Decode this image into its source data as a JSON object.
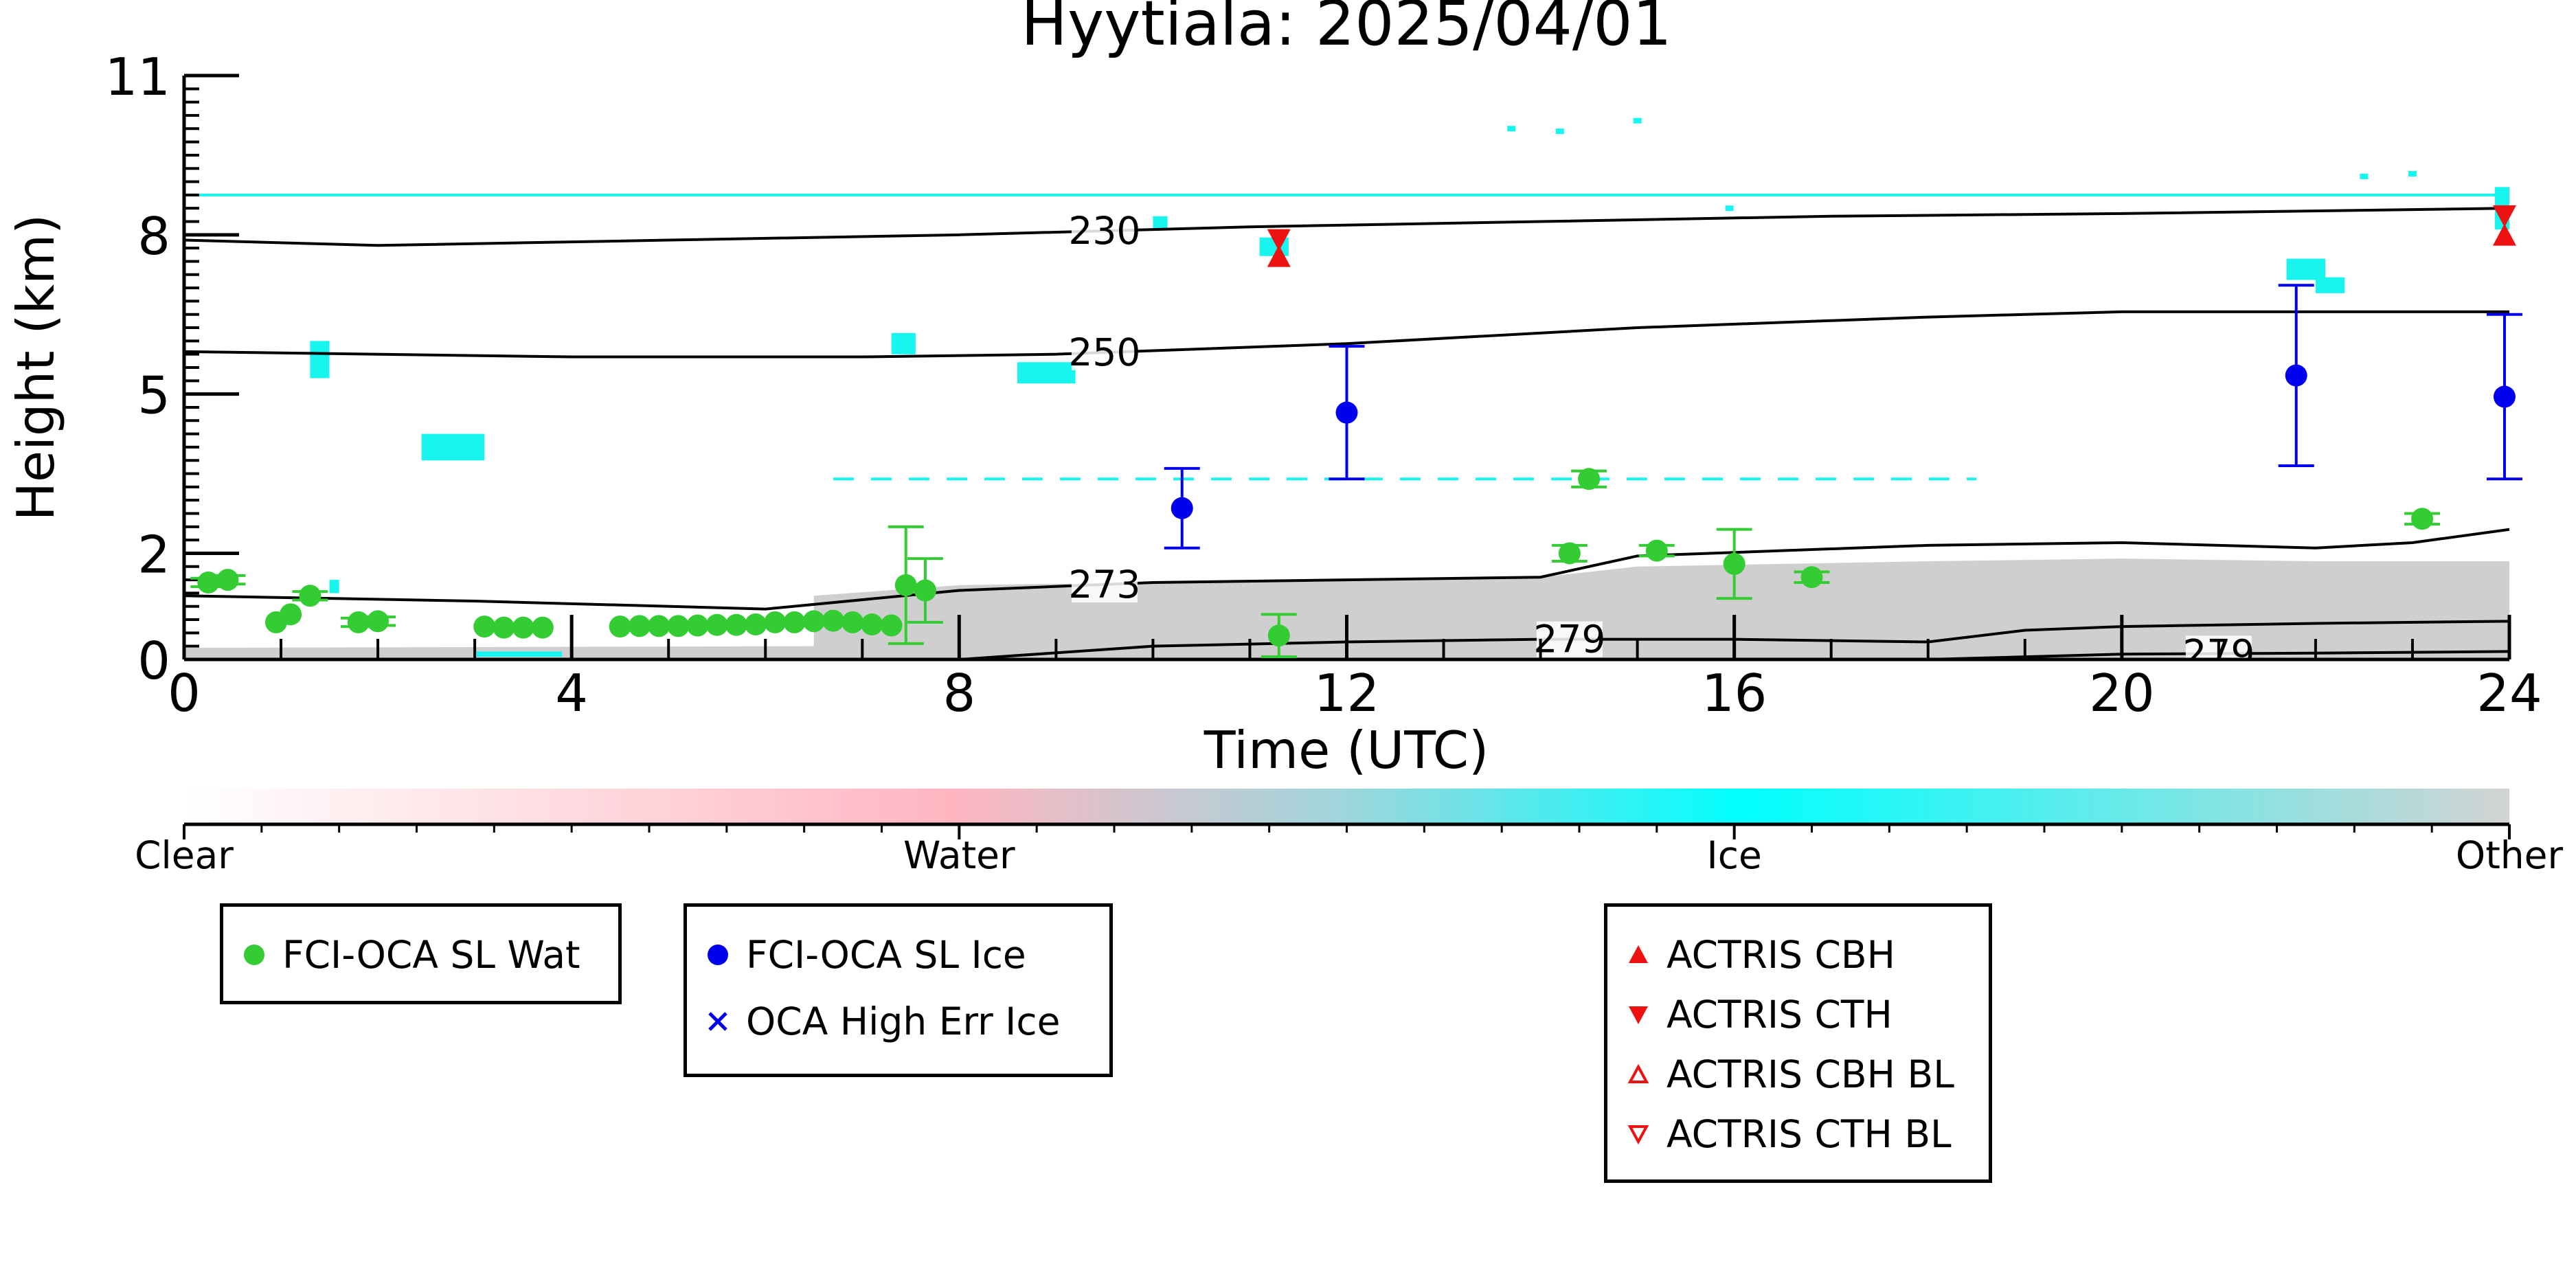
{
  "chart_data": {
    "type": "scatter",
    "title": "Hyytiala: 2025/04/01",
    "xlabel": "Time (UTC)",
    "ylabel": "Height (km)",
    "xlim": [
      0,
      24
    ],
    "ylim": [
      0,
      11
    ],
    "x_ticks": [
      "0",
      "4",
      "8",
      "12",
      "16",
      "20",
      "24"
    ],
    "y_ticks": [
      "0",
      "2",
      "5",
      "8",
      "11"
    ],
    "grid": false,
    "temperature_contours": [
      {
        "label": "230",
        "label_x": 9.5,
        "points": [
          [
            0,
            7.9
          ],
          [
            2,
            7.8
          ],
          [
            5,
            7.9
          ],
          [
            8,
            8.0
          ],
          [
            11,
            8.15
          ],
          [
            14,
            8.25
          ],
          [
            17,
            8.35
          ],
          [
            20,
            8.4
          ],
          [
            24,
            8.5
          ]
        ]
      },
      {
        "label": "250",
        "label_x": 9.5,
        "points": [
          [
            0,
            5.8
          ],
          [
            4,
            5.7
          ],
          [
            7,
            5.7
          ],
          [
            9,
            5.75
          ],
          [
            12,
            5.95
          ],
          [
            15,
            6.25
          ],
          [
            18,
            6.45
          ],
          [
            20,
            6.55
          ],
          [
            24,
            6.55
          ]
        ]
      },
      {
        "label": "273",
        "label_x": 9.5,
        "points": [
          [
            0,
            1.2
          ],
          [
            3,
            1.1
          ],
          [
            6,
            0.95
          ],
          [
            8,
            1.3
          ],
          [
            10,
            1.45
          ],
          [
            12,
            1.5
          ],
          [
            14,
            1.55
          ],
          [
            15,
            1.95
          ],
          [
            18,
            2.15
          ],
          [
            20,
            2.2
          ],
          [
            22,
            2.1
          ],
          [
            23,
            2.2
          ],
          [
            24,
            2.45
          ]
        ]
      },
      {
        "label": "279",
        "label_x": 14.3,
        "points": [
          [
            8,
            0
          ],
          [
            10,
            0.25
          ],
          [
            12,
            0.33
          ],
          [
            14,
            0.38
          ],
          [
            16,
            0.38
          ],
          [
            18,
            0.33
          ],
          [
            19,
            0.55
          ],
          [
            20,
            0.62
          ],
          [
            22,
            0.68
          ],
          [
            24,
            0.72
          ]
        ]
      },
      {
        "label": "279",
        "label_x": 21.0,
        "points": [
          [
            18,
            0
          ],
          [
            20,
            0.1
          ],
          [
            22,
            0.12
          ],
          [
            24,
            0.15
          ]
        ]
      }
    ],
    "series": [
      {
        "name": "FCI-OCA SL Wat",
        "color": "#33cc33",
        "marker": "circle",
        "points": [
          {
            "x": 0.25,
            "y": 1.45,
            "err": 0.08
          },
          {
            "x": 0.45,
            "y": 1.5,
            "err": 0.08
          },
          {
            "x": 0.95,
            "y": 0.7
          },
          {
            "x": 1.1,
            "y": 0.85
          },
          {
            "x": 1.3,
            "y": 1.2,
            "err": 0.08
          },
          {
            "x": 1.8,
            "y": 0.7,
            "err": 0.08
          },
          {
            "x": 2.0,
            "y": 0.72,
            "err": 0.08
          },
          {
            "x": 3.1,
            "y": 0.62
          },
          {
            "x": 3.3,
            "y": 0.6
          },
          {
            "x": 3.5,
            "y": 0.6
          },
          {
            "x": 3.7,
            "y": 0.6
          },
          {
            "x": 4.5,
            "y": 0.62
          },
          {
            "x": 4.7,
            "y": 0.63
          },
          {
            "x": 4.9,
            "y": 0.63
          },
          {
            "x": 5.1,
            "y": 0.63
          },
          {
            "x": 5.3,
            "y": 0.64
          },
          {
            "x": 5.5,
            "y": 0.65
          },
          {
            "x": 5.7,
            "y": 0.65
          },
          {
            "x": 5.9,
            "y": 0.66
          },
          {
            "x": 6.1,
            "y": 0.7
          },
          {
            "x": 6.3,
            "y": 0.7
          },
          {
            "x": 6.5,
            "y": 0.72
          },
          {
            "x": 6.7,
            "y": 0.73
          },
          {
            "x": 6.9,
            "y": 0.7
          },
          {
            "x": 7.1,
            "y": 0.66
          },
          {
            "x": 7.3,
            "y": 0.64
          },
          {
            "x": 7.45,
            "y": 1.4,
            "err": 1.1
          },
          {
            "x": 7.65,
            "y": 1.3,
            "err": 0.6
          },
          {
            "x": 11.3,
            "y": 0.45,
            "err": 0.4
          },
          {
            "x": 14.3,
            "y": 2.0,
            "err": 0.15
          },
          {
            "x": 14.5,
            "y": 3.4,
            "err": 0.15
          },
          {
            "x": 15.2,
            "y": 2.05,
            "err": 0.1
          },
          {
            "x": 16.0,
            "y": 1.8,
            "err": 0.65
          },
          {
            "x": 16.8,
            "y": 1.55,
            "err": 0.1
          },
          {
            "x": 23.1,
            "y": 2.65,
            "err": 0.1
          }
        ]
      },
      {
        "name": "FCI-OCA SL Ice",
        "color": "#0000ee",
        "marker": "circle",
        "points": [
          {
            "x": 10.3,
            "y": 2.85,
            "err": 0.75
          },
          {
            "x": 12.0,
            "y": 4.65,
            "err": 1.25
          },
          {
            "x": 21.8,
            "y": 5.35,
            "err": 1.7
          },
          {
            "x": 23.95,
            "y": 4.95,
            "err": 1.55
          }
        ]
      },
      {
        "name": "OCA High Err Ice",
        "color": "#0000ee",
        "marker": "x",
        "points": []
      },
      {
        "name": "ACTRIS CBH",
        "color": "#ee1111",
        "marker": "triangle-up",
        "points": [
          {
            "x": 11.3,
            "y": 7.55
          },
          {
            "x": 23.95,
            "y": 7.95
          }
        ]
      },
      {
        "name": "ACTRIS CTH",
        "color": "#ee1111",
        "marker": "triangle-down",
        "points": [
          {
            "x": 11.3,
            "y": 7.95
          },
          {
            "x": 23.95,
            "y": 8.4
          }
        ]
      },
      {
        "name": "ACTRIS CBH BL",
        "color": "#ee1111",
        "marker": "triangle-up-open",
        "points": []
      },
      {
        "name": "ACTRIS CTH BL",
        "color": "#ee1111",
        "marker": "triangle-down-open",
        "points": []
      }
    ],
    "classification": {
      "ice_color": "#18f5ef",
      "other_color": "#cfcfcf",
      "ice_line_height": 8.75,
      "ice_dashed_layer": {
        "y": 3.4,
        "x_start": 6.7,
        "x_end": 18.5
      },
      "ice_patches": [
        {
          "x1": 1.3,
          "x2": 1.5,
          "y1": 5.3,
          "y2": 6.0
        },
        {
          "x1": 2.45,
          "x2": 3.1,
          "y1": 3.75,
          "y2": 4.25
        },
        {
          "x1": 7.3,
          "x2": 7.55,
          "y1": 5.75,
          "y2": 6.15
        },
        {
          "x1": 8.6,
          "x2": 9.2,
          "y1": 5.2,
          "y2": 5.6
        },
        {
          "x1": 10.0,
          "x2": 10.15,
          "y1": 8.1,
          "y2": 8.35
        },
        {
          "x1": 11.1,
          "x2": 11.4,
          "y1": 7.6,
          "y2": 7.95
        },
        {
          "x1": 21.7,
          "x2": 22.1,
          "y1": 7.15,
          "y2": 7.55
        },
        {
          "x1": 22.0,
          "x2": 22.3,
          "y1": 6.9,
          "y2": 7.2
        },
        {
          "x1": 23.85,
          "x2": 24.0,
          "y1": 8.1,
          "y2": 8.9
        },
        {
          "x1": 1.5,
          "x2": 1.6,
          "y1": 1.25,
          "y2": 1.5
        },
        {
          "x1": 3.0,
          "x2": 3.9,
          "y1": 0.05,
          "y2": 0.15
        }
      ],
      "ice_specks": [
        {
          "x": 13.7,
          "y": 10.0
        },
        {
          "x": 14.2,
          "y": 9.95
        },
        {
          "x": 15.0,
          "y": 10.15
        },
        {
          "x": 22.5,
          "y": 9.1
        },
        {
          "x": 23.0,
          "y": 9.15
        },
        {
          "x": 15.95,
          "y": 8.5
        }
      ],
      "other_region": [
        [
          0,
          0.22
        ],
        [
          6.5,
          0.25
        ],
        [
          6.5,
          1.2
        ],
        [
          8,
          1.4
        ],
        [
          10,
          1.45
        ],
        [
          12,
          1.5
        ],
        [
          14,
          1.55
        ],
        [
          15,
          1.75
        ],
        [
          18,
          1.85
        ],
        [
          20,
          1.9
        ],
        [
          22,
          1.85
        ],
        [
          24,
          1.85
        ],
        [
          24,
          0
        ],
        [
          0,
          0
        ]
      ]
    },
    "colorbar": {
      "labels": [
        "Clear",
        "Water",
        "Ice",
        "Other"
      ],
      "colors": [
        "#ffffff",
        "#ffb6c1",
        "#00ffff",
        "#d3d3d3"
      ]
    },
    "legend": {
      "groups": [
        [
          "FCI-OCA SL Wat"
        ],
        [
          "FCI-OCA SL Ice",
          "OCA High Err Ice"
        ],
        [
          "ACTRIS CBH",
          "ACTRIS CTH",
          "ACTRIS CBH BL",
          "ACTRIS CTH BL"
        ]
      ],
      "placement": "below"
    }
  }
}
